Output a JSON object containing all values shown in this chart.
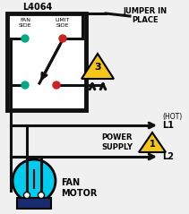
{
  "bg_color": "#f0f0f0",
  "box_label": "L4064",
  "fan_side_label": "FAN\nSIDE",
  "limit_side_label": "LIMIT\nSIDE",
  "jumper_label": "JUMPER IN\nPLACE",
  "power_supply_label": "POWER\nSUPPLY",
  "hot_label": "(HOT)",
  "l1_label": "L1",
  "l2_label": "L2",
  "fan_motor_label": "FAN\nMOTOR",
  "triangle3_label": "3",
  "triangle1_label": "1",
  "box_color": "#111111",
  "wire_color": "#111111",
  "dot_fan_color": "#00aa88",
  "dot_limit_color": "#cc2222",
  "triangle_fill": "#f5c518",
  "motor_body_color": "#00ccee",
  "motor_base_color": "#1a2a6e"
}
